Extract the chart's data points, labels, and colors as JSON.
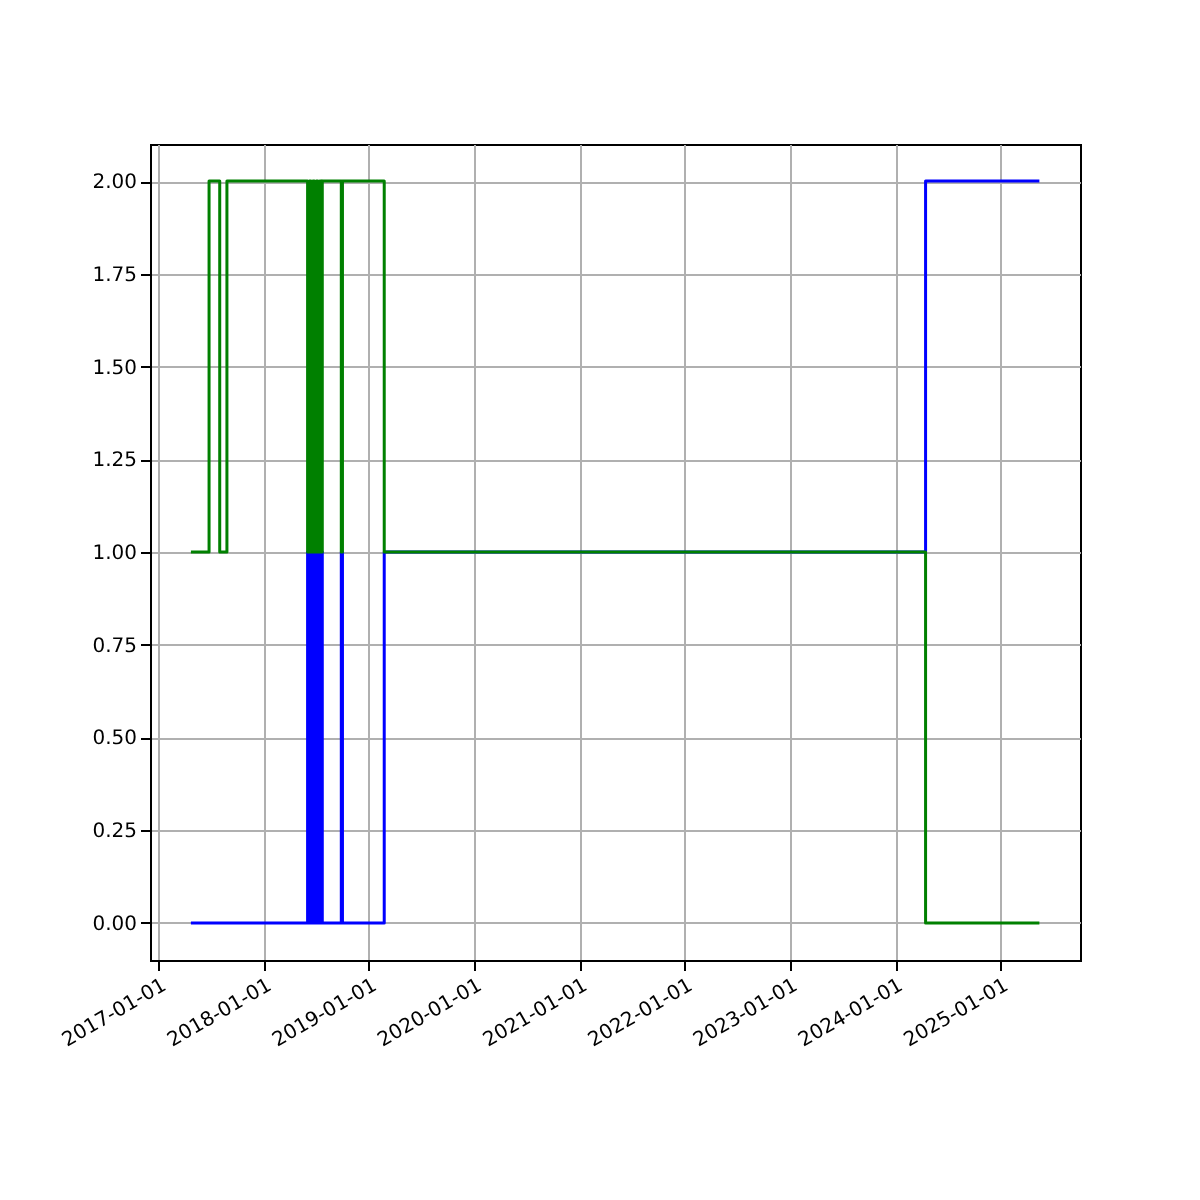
{
  "chart_data": {
    "type": "step",
    "grid": true,
    "xlim": [
      "2016-12-02",
      "2025-10-04"
    ],
    "ylim": [
      -0.1,
      2.1
    ],
    "xticks": [
      "2017-01-01",
      "2018-01-01",
      "2019-01-01",
      "2020-01-01",
      "2021-01-01",
      "2022-01-01",
      "2023-01-01",
      "2024-01-01",
      "2025-01-01"
    ],
    "yticks": [
      {
        "value": 0,
        "label": "0.00"
      },
      {
        "value": 0.25,
        "label": "0.25"
      },
      {
        "value": 0.5,
        "label": "0.50"
      },
      {
        "value": 0.75,
        "label": "0.75"
      },
      {
        "value": 1,
        "label": "1.00"
      },
      {
        "value": 1.25,
        "label": "1.25"
      },
      {
        "value": 1.5,
        "label": "1.50"
      },
      {
        "value": 1.75,
        "label": "1.75"
      },
      {
        "value": 2,
        "label": "2.00"
      }
    ],
    "x": [
      "2017-04-23",
      "2017-06-25",
      "2017-08-01",
      "2017-08-26",
      "2018-06-02",
      "2018-06-08",
      "2018-06-14",
      "2018-06-20",
      "2018-06-26",
      "2018-07-02",
      "2018-07-08",
      "2018-07-14",
      "2018-07-20",
      "2018-07-23",
      "2018-09-27",
      "2018-10-01",
      "2019-02-23",
      "2024-04-16",
      "2025-05-16"
    ],
    "series": [
      {
        "color": "#0000ff",
        "values": [
          0,
          0,
          0,
          0,
          1,
          0,
          1,
          0,
          1,
          0,
          1,
          0,
          1,
          0,
          1,
          0,
          1,
          2,
          2
        ]
      },
      {
        "color": "#008000",
        "values": [
          1,
          2,
          1,
          2,
          1,
          2,
          1,
          2,
          1,
          2,
          1,
          2,
          1,
          2,
          1,
          2,
          1,
          0,
          0
        ]
      }
    ]
  }
}
